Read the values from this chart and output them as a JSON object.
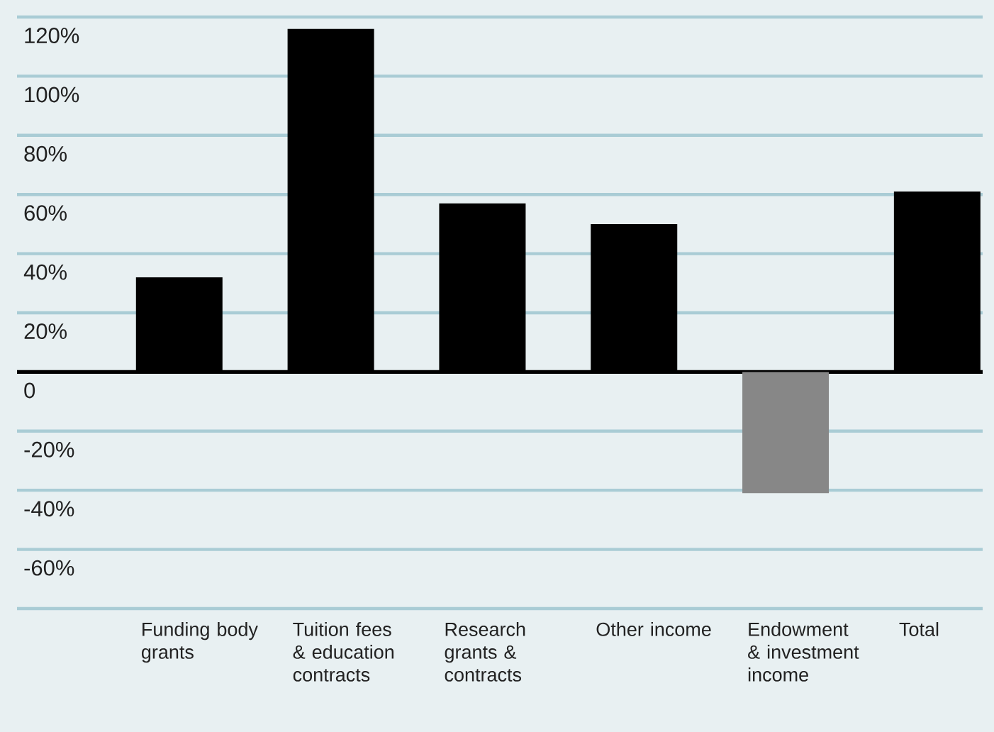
{
  "chart_data": {
    "type": "bar",
    "categories": [
      "Funding body grants",
      "Tuition fees & education contracts",
      "Research grants & contracts",
      "Other income",
      "Endowment & investment income",
      "Total"
    ],
    "values": [
      32,
      116,
      57,
      50,
      -41,
      61
    ],
    "colors": [
      "#000000",
      "#000000",
      "#000000",
      "#000000",
      "#878787",
      "#000000"
    ],
    "ylim": [
      -80,
      120
    ],
    "yticks": [
      {
        "value": 120,
        "label": "120%"
      },
      {
        "value": 100,
        "label": "100%"
      },
      {
        "value": 80,
        "label": "80%"
      },
      {
        "value": 60,
        "label": "60%"
      },
      {
        "value": 40,
        "label": "40%"
      },
      {
        "value": 20,
        "label": "20%"
      },
      0,
      {
        "value": -20,
        "label": "-20%"
      },
      {
        "value": -40,
        "label": "-40%"
      },
      {
        "value": -60,
        "label": "-60%"
      },
      {
        "value": -80,
        "label": null
      }
    ],
    "grid": "y"
  }
}
